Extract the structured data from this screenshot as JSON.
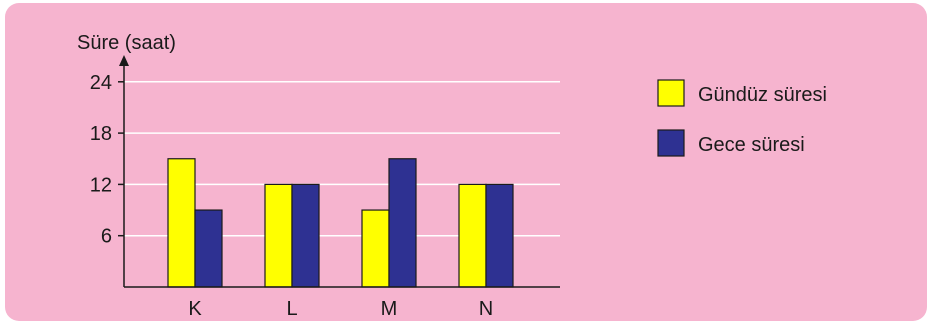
{
  "chart_data": {
    "type": "bar",
    "ylabel": "Süre (saat)",
    "categories": [
      "K",
      "L",
      "M",
      "N"
    ],
    "yticks": [
      6,
      12,
      18,
      24
    ],
    "ylim": [
      0,
      24
    ],
    "grid": true,
    "legend_position": "right",
    "series": [
      {
        "name": "Gündüz süresi",
        "color": "#ffff00",
        "values": [
          15,
          12,
          9,
          12
        ]
      },
      {
        "name": "Gece süresi",
        "color": "#2e3192",
        "values": [
          9,
          12,
          15,
          12
        ]
      }
    ]
  },
  "colors": {
    "background": "#f6b4cf",
    "gridline": "#ffffff",
    "axis": "#1a1a1a"
  }
}
